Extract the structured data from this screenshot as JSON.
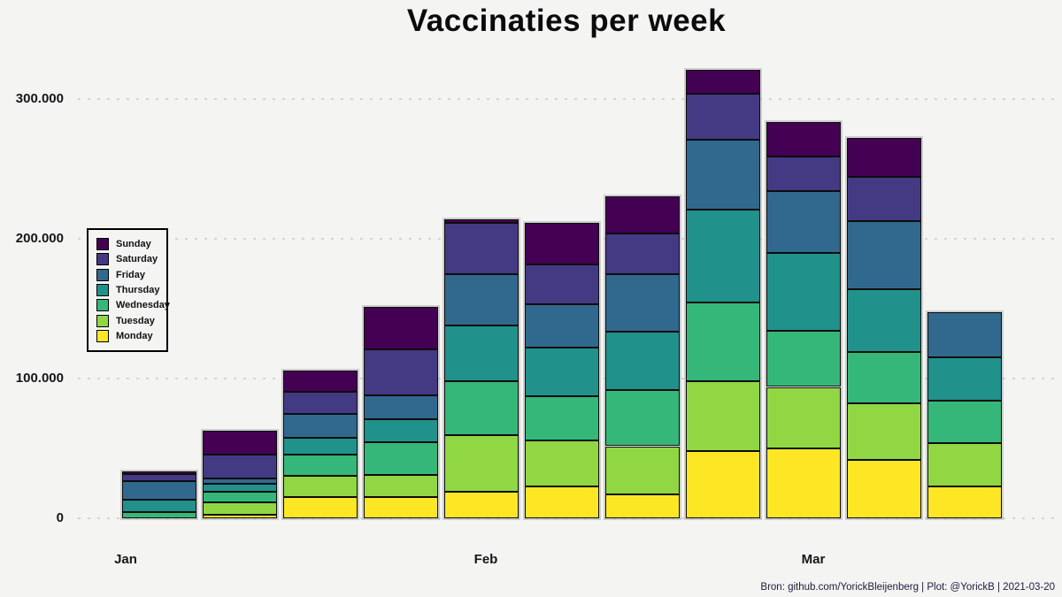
{
  "chart_data": {
    "type": "bar",
    "stacked": true,
    "title": "Vaccinaties per week",
    "xlabel": "",
    "ylabel": "",
    "ylim": [
      0,
      330000
    ],
    "grid": "horizontal-dashed",
    "legend_position": "upper-left-inside",
    "yticks": [
      300000,
      200000,
      100000,
      0
    ],
    "ytick_labels": [
      "300.000",
      "200.000",
      "100.000",
      "0"
    ],
    "xtick_labels": [
      "Jan",
      "Feb",
      "Mar"
    ],
    "weeks": 11,
    "series": [
      {
        "name": "Monday",
        "color": "#fde725",
        "values": [
          0,
          2800,
          14900,
          15500,
          18700,
          23100,
          16800,
          47800,
          49700,
          41500,
          22500
        ]
      },
      {
        "name": "Tuesday",
        "color": "#90d743",
        "values": [
          0,
          8900,
          15200,
          15800,
          40500,
          32900,
          34800,
          50600,
          44300,
          41100,
          31600
        ]
      },
      {
        "name": "Wednesday",
        "color": "#35b779",
        "values": [
          4700,
          7000,
          15200,
          23400,
          38600,
          31600,
          39900,
          56300,
          39900,
          36700,
          30400
        ]
      },
      {
        "name": "Thursday",
        "color": "#21918c",
        "values": [
          8900,
          5700,
          12000,
          16500,
          39900,
          34800,
          41800,
          66500,
          55700,
          44900,
          30400
        ]
      },
      {
        "name": "Friday",
        "color": "#31688e",
        "values": [
          12700,
          4400,
          17700,
          16500,
          37300,
          31000,
          41100,
          50000,
          44900,
          48700,
          32300
        ]
      },
      {
        "name": "Saturday",
        "color": "#443983",
        "values": [
          5100,
          16500,
          15200,
          32900,
          36700,
          28500,
          29100,
          32900,
          24100,
          31600,
          0
        ]
      },
      {
        "name": "Sunday",
        "color": "#440154",
        "values": [
          1900,
          17100,
          15200,
          30400,
          2500,
          29700,
          27200,
          17100,
          24700,
          27800,
          0
        ]
      }
    ],
    "legend_order": [
      "Sunday",
      "Saturday",
      "Friday",
      "Thursday",
      "Wednesday",
      "Tuesday",
      "Monday"
    ]
  },
  "footer": {
    "text": "Bron: github.com/YorickBleijenberg | Plot: @YorickB  |  2021-03-20"
  }
}
